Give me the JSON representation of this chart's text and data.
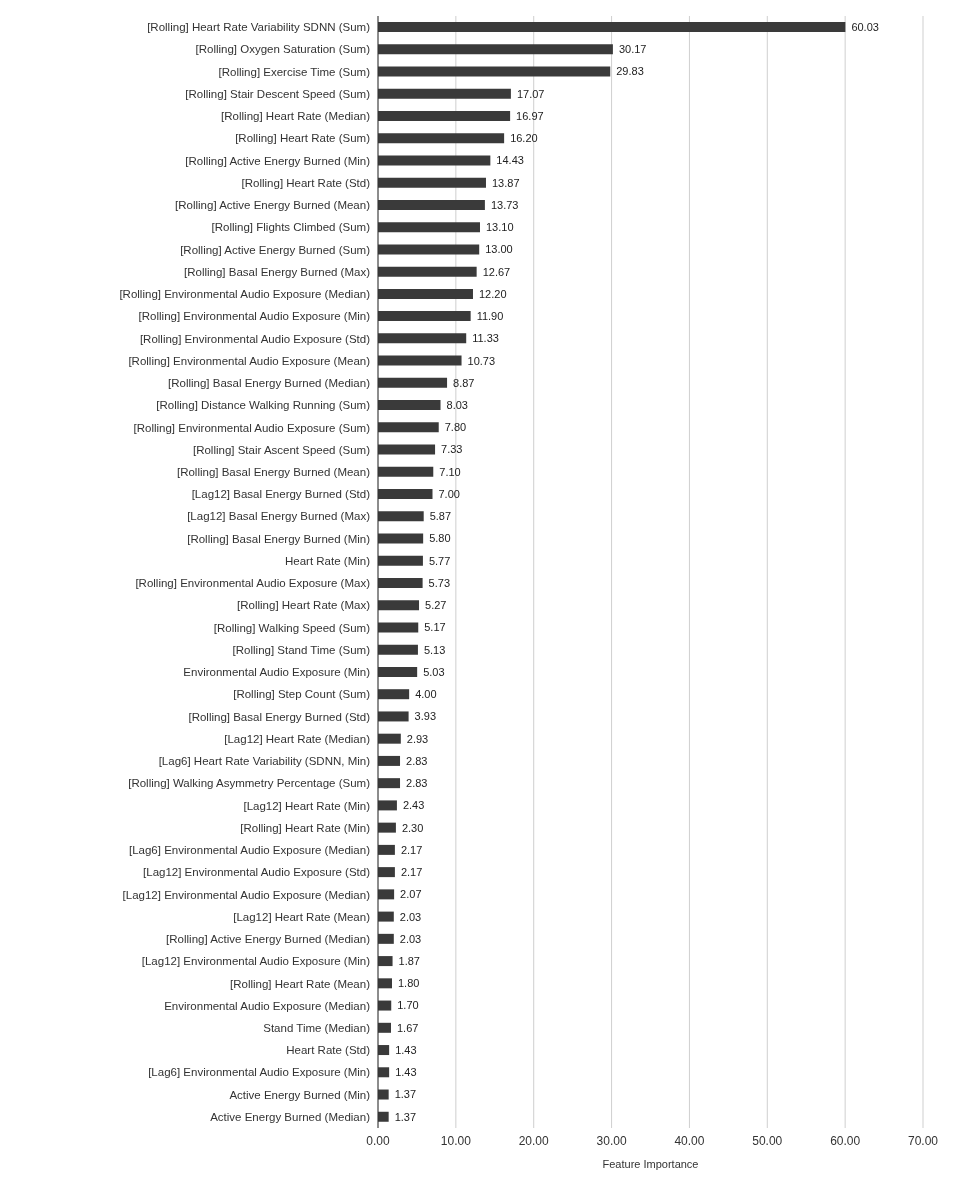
{
  "chart_data": {
    "type": "bar",
    "orientation": "horizontal",
    "xlabel": "Feature Importance",
    "color": "#3a3a3a",
    "grid": "x",
    "xlim": [
      0,
      70
    ],
    "xticks": [
      {
        "value": 0,
        "label": "0.00"
      },
      {
        "value": 10,
        "label": "10.00"
      },
      {
        "value": 20,
        "label": "20.00"
      },
      {
        "value": 30,
        "label": "30.00"
      },
      {
        "value": 40,
        "label": "40.00"
      },
      {
        "value": 50,
        "label": "50.00"
      },
      {
        "value": 60,
        "label": "60.00"
      },
      {
        "value": 70,
        "label": "70.00"
      }
    ],
    "categories": [
      "[Rolling] Heart Rate Variability SDNN (Sum)",
      "[Rolling] Oxygen Saturation (Sum)",
      "[Rolling] Exercise Time (Sum)",
      "[Rolling] Stair Descent Speed (Sum)",
      "[Rolling] Heart Rate (Median)",
      "[Rolling] Heart Rate (Sum)",
      "[Rolling] Active Energy Burned (Min)",
      "[Rolling] Heart Rate (Std)",
      "[Rolling] Active Energy Burned (Mean)",
      "[Rolling] Flights Climbed (Sum)",
      "[Rolling] Active Energy Burned (Sum)",
      "[Rolling] Basal Energy Burned (Max)",
      "[Rolling] Environmental Audio Exposure (Median)",
      "[Rolling] Environmental Audio Exposure (Min)",
      "[Rolling] Environmental Audio Exposure (Std)",
      "[Rolling] Environmental Audio Exposure (Mean)",
      "[Rolling] Basal Energy Burned (Median)",
      "[Rolling] Distance Walking Running (Sum)",
      "[Rolling] Environmental Audio Exposure (Sum)",
      "[Rolling] Stair Ascent Speed (Sum)",
      "[Rolling] Basal Energy Burned (Mean)",
      "[Lag12] Basal Energy Burned (Std)",
      "[Lag12] Basal Energy Burned (Max)",
      "[Rolling] Basal Energy Burned (Min)",
      "Heart Rate (Min)",
      "[Rolling] Environmental Audio Exposure (Max)",
      "[Rolling] Heart Rate (Max)",
      "[Rolling] Walking Speed (Sum)",
      "[Rolling] Stand Time (Sum)",
      "Environmental Audio Exposure (Min)",
      "[Rolling] Step Count (Sum)",
      "[Rolling] Basal Energy Burned (Std)",
      "[Lag12] Heart Rate (Median)",
      "[Lag6] Heart Rate Variability (SDNN, Min)",
      "[Rolling] Walking Asymmetry Percentage (Sum)",
      "[Lag12] Heart Rate (Min)",
      "[Rolling] Heart Rate (Min)",
      "[Lag6] Environmental Audio Exposure (Median)",
      "[Lag12] Environmental Audio Exposure (Std)",
      "[Lag12] Environmental Audio Exposure (Median)",
      "[Lag12] Heart Rate (Mean)",
      "[Rolling] Active Energy Burned (Median)",
      "[Lag12] Environmental Audio Exposure (Min)",
      "[Rolling] Heart Rate (Mean)",
      "Environmental Audio Exposure (Median)",
      "Stand Time (Median)",
      "Heart Rate (Std)",
      "[Lag6] Environmental Audio Exposure (Min)",
      "Active Energy Burned (Min)",
      "Active Energy Burned (Median)"
    ],
    "values": [
      60.03,
      30.17,
      29.83,
      17.07,
      16.97,
      16.2,
      14.43,
      13.87,
      13.73,
      13.1,
      13.0,
      12.67,
      12.2,
      11.9,
      11.33,
      10.73,
      8.87,
      8.03,
      7.8,
      7.33,
      7.1,
      7.0,
      5.87,
      5.8,
      5.77,
      5.73,
      5.27,
      5.17,
      5.13,
      5.03,
      4.0,
      3.93,
      2.93,
      2.83,
      2.83,
      2.43,
      2.3,
      2.17,
      2.17,
      2.07,
      2.03,
      2.03,
      1.87,
      1.8,
      1.7,
      1.67,
      1.43,
      1.43,
      1.37,
      1.37
    ],
    "value_labels": [
      "60.03",
      "30.17",
      "29.83",
      "17.07",
      "16.97",
      "16.20",
      "14.43",
      "13.87",
      "13.73",
      "13.10",
      "13.00",
      "12.67",
      "12.20",
      "11.90",
      "11.33",
      "10.73",
      "8.87",
      "8.03",
      "7.80",
      "7.33",
      "7.10",
      "7.00",
      "5.87",
      "5.80",
      "5.77",
      "5.73",
      "5.27",
      "5.17",
      "5.13",
      "5.03",
      "4.00",
      "3.93",
      "2.93",
      "2.83",
      "2.83",
      "2.43",
      "2.30",
      "2.17",
      "2.17",
      "2.07",
      "2.03",
      "2.03",
      "1.87",
      "1.80",
      "1.70",
      "1.67",
      "1.43",
      "1.43",
      "1.37",
      "1.37"
    ]
  }
}
